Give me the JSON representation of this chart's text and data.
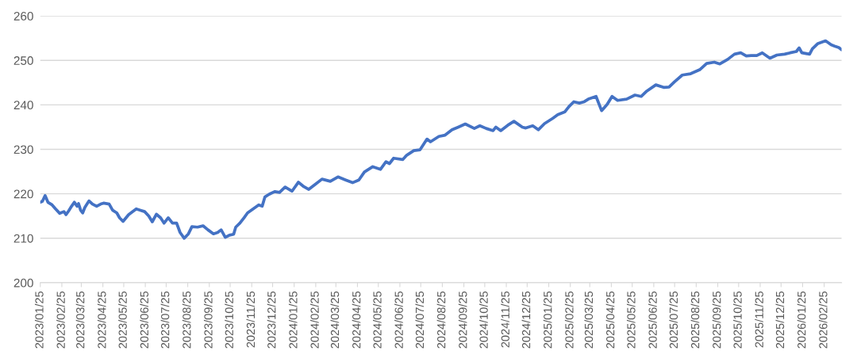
{
  "chart_data": {
    "type": "line",
    "x": [
      "2023-01-25",
      "2023-01-28",
      "2023-02-01",
      "2023-02-05",
      "2023-02-11",
      "2023-02-16",
      "2023-02-22",
      "2023-02-28",
      "2023-03-03",
      "2023-03-07",
      "2023-03-11",
      "2023-03-15",
      "2023-03-19",
      "2023-03-21",
      "2023-03-24",
      "2023-03-27",
      "2023-03-30",
      "2023-04-05",
      "2023-04-10",
      "2023-04-16",
      "2023-04-22",
      "2023-04-26",
      "2023-05-04",
      "2023-05-09",
      "2023-05-15",
      "2023-05-19",
      "2023-05-24",
      "2023-06-01",
      "2023-06-07",
      "2023-06-12",
      "2023-06-18",
      "2023-06-24",
      "2023-06-30",
      "2023-07-05",
      "2023-07-11",
      "2023-07-17",
      "2023-07-22",
      "2023-07-28",
      "2023-08-03",
      "2023-08-09",
      "2023-08-14",
      "2023-08-20",
      "2023-08-26",
      "2023-08-31",
      "2023-09-08",
      "2023-09-16",
      "2023-09-23",
      "2023-10-01",
      "2023-10-07",
      "2023-10-12",
      "2023-10-18",
      "2023-10-24",
      "2023-10-30",
      "2023-11-02",
      "2023-11-08",
      "2023-11-14",
      "2023-11-19",
      "2023-11-27",
      "2023-12-05",
      "2023-12-10",
      "2023-12-14",
      "2023-12-20",
      "2023-12-28",
      "2024-01-04",
      "2024-01-12",
      "2024-01-22",
      "2024-01-31",
      "2024-02-08",
      "2024-02-15",
      "2024-02-25",
      "2024-03-05",
      "2024-03-17",
      "2024-03-28",
      "2024-04-08",
      "2024-04-18",
      "2024-04-27",
      "2024-05-05",
      "2024-05-17",
      "2024-05-28",
      "2024-06-05",
      "2024-06-10",
      "2024-06-16",
      "2024-06-29",
      "2024-07-05",
      "2024-07-15",
      "2024-07-24",
      "2024-08-03",
      "2024-08-08",
      "2024-08-20",
      "2024-08-29",
      "2024-09-08",
      "2024-09-17",
      "2024-09-27",
      "2024-10-10",
      "2024-10-18",
      "2024-10-27",
      "2024-11-06",
      "2024-11-10",
      "2024-11-17",
      "2024-11-27",
      "2024-12-06",
      "2024-12-18",
      "2024-12-23",
      "2025-01-02",
      "2025-01-10",
      "2025-01-19",
      "2025-01-31",
      "2025-02-07",
      "2025-02-17",
      "2025-02-23",
      "2025-03-02",
      "2025-03-10",
      "2025-03-17",
      "2025-03-23",
      "2025-04-03",
      "2025-04-11",
      "2025-04-19",
      "2025-04-26",
      "2025-05-04",
      "2025-05-17",
      "2025-05-29",
      "2025-06-07",
      "2025-06-15",
      "2025-06-28",
      "2025-07-10",
      "2025-07-17",
      "2025-07-25",
      "2025-08-05",
      "2025-08-17",
      "2025-08-30",
      "2025-09-09",
      "2025-09-20",
      "2025-09-28",
      "2025-10-09",
      "2025-10-19",
      "2025-10-28",
      "2025-11-05",
      "2025-11-12",
      "2025-11-20",
      "2025-11-28",
      "2025-12-09",
      "2025-12-19",
      "2025-12-30",
      "2026-01-07",
      "2026-01-16",
      "2026-01-20",
      "2026-01-24",
      "2026-02-04",
      "2026-02-08",
      "2026-02-16",
      "2026-02-27",
      "2026-03-07",
      "2026-03-12",
      "2026-03-18",
      "2026-03-22"
    ],
    "series": [
      {
        "color": "#4472c4",
        "values": [
          218.1,
          218.3,
          219.6,
          218.1,
          217.5,
          216.6,
          215.6,
          216.0,
          215.3,
          216.2,
          217.2,
          218.1,
          217.2,
          217.8,
          216.3,
          215.7,
          216.9,
          218.4,
          217.7,
          217.2,
          217.7,
          217.9,
          217.7,
          216.3,
          215.7,
          214.6,
          213.8,
          215.3,
          216.0,
          216.6,
          216.3,
          216.0,
          215.0,
          213.7,
          215.4,
          214.6,
          213.4,
          214.6,
          213.4,
          213.4,
          211.3,
          210.0,
          211.0,
          212.6,
          212.5,
          212.8,
          211.9,
          211.0,
          211.3,
          211.9,
          210.2,
          210.7,
          210.9,
          212.5,
          213.4,
          214.6,
          215.7,
          216.6,
          217.5,
          217.2,
          219.3,
          219.9,
          220.5,
          220.3,
          221.5,
          220.6,
          222.6,
          221.6,
          221.0,
          222.2,
          223.3,
          222.8,
          223.8,
          223.1,
          222.5,
          223.1,
          224.9,
          226.1,
          225.5,
          227.2,
          226.8,
          228.0,
          227.7,
          228.7,
          229.7,
          229.9,
          232.3,
          231.7,
          232.9,
          233.2,
          234.4,
          235.0,
          235.7,
          234.7,
          235.3,
          234.7,
          234.2,
          235.0,
          234.2,
          235.4,
          236.3,
          235.0,
          234.8,
          235.3,
          234.4,
          235.8,
          237.0,
          237.8,
          238.4,
          239.6,
          240.7,
          240.4,
          240.7,
          241.3,
          241.9,
          238.7,
          240.1,
          241.9,
          241.0,
          241.3,
          242.2,
          241.9,
          243.1,
          244.5,
          243.9,
          244.0,
          245.2,
          246.7,
          247.0,
          247.9,
          249.3,
          249.6,
          249.2,
          250.2,
          251.4,
          251.7,
          251.0,
          251.1,
          251.1,
          251.7,
          250.5,
          251.2,
          251.4,
          251.7,
          252.0,
          252.8,
          251.7,
          251.4,
          252.6,
          253.8,
          254.4,
          253.5,
          253.2,
          252.9,
          252.4
        ]
      }
    ],
    "xlim": [
      "2023-01-25",
      "2026-03-22"
    ],
    "xticks": [
      {
        "value": "2023-01-25",
        "label": "2023/01/25"
      },
      {
        "value": "2023-02-25",
        "label": "2023/02/25"
      },
      {
        "value": "2023-03-25",
        "label": "2023/03/25"
      },
      {
        "value": "2023-04-25",
        "label": "2023/04/25"
      },
      {
        "value": "2023-05-25",
        "label": "2023/05/25"
      },
      {
        "value": "2023-06-25",
        "label": "2023/06/25"
      },
      {
        "value": "2023-07-25",
        "label": "2023/07/25"
      },
      {
        "value": "2023-08-25",
        "label": "2023/08/25"
      },
      {
        "value": "2023-09-25",
        "label": "2023/09/25"
      },
      {
        "value": "2023-10-25",
        "label": "2023/10/25"
      },
      {
        "value": "2023-11-25",
        "label": "2023/11/25"
      },
      {
        "value": "2023-12-25",
        "label": "2023/12/25"
      },
      {
        "value": "2024-01-25",
        "label": "2024/01/25"
      },
      {
        "value": "2024-02-25",
        "label": "2024/02/25"
      },
      {
        "value": "2024-03-25",
        "label": "2024/03/25"
      },
      {
        "value": "2024-04-25",
        "label": "2024/04/25"
      },
      {
        "value": "2024-05-25",
        "label": "2024/05/25"
      },
      {
        "value": "2024-06-25",
        "label": "2024/06/25"
      },
      {
        "value": "2024-07-25",
        "label": "2024/07/25"
      },
      {
        "value": "2024-08-25",
        "label": "2024/08/25"
      },
      {
        "value": "2024-09-25",
        "label": "2024/09/25"
      },
      {
        "value": "2024-10-25",
        "label": "2024/10/25"
      },
      {
        "value": "2024-11-25",
        "label": "2024/11/25"
      },
      {
        "value": "2024-12-25",
        "label": "2024/12/25"
      },
      {
        "value": "2025-01-25",
        "label": "2025/01/25"
      },
      {
        "value": "2025-02-25",
        "label": "2025/02/25"
      },
      {
        "value": "2025-03-25",
        "label": "2025/03/25"
      },
      {
        "value": "2025-04-25",
        "label": "2025/04/25"
      },
      {
        "value": "2025-05-25",
        "label": "2025/05/25"
      },
      {
        "value": "2025-06-25",
        "label": "2025/06/25"
      },
      {
        "value": "2025-07-25",
        "label": "2025/07/25"
      },
      {
        "value": "2025-08-25",
        "label": "2025/08/25"
      },
      {
        "value": "2025-09-25",
        "label": "2025/09/25"
      },
      {
        "value": "2025-10-25",
        "label": "2025/10/25"
      },
      {
        "value": "2025-11-25",
        "label": "2025/11/25"
      },
      {
        "value": "2025-12-25",
        "label": "2025/12/25"
      },
      {
        "value": "2026-01-25",
        "label": "2026/01/25"
      },
      {
        "value": "2026-02-25",
        "label": "2026/02/25"
      }
    ],
    "ylim": [
      200,
      260
    ],
    "yticks": [
      200,
      210,
      220,
      230,
      240,
      250,
      260
    ],
    "grid": "y",
    "marker": "none",
    "line_style": "solid"
  }
}
